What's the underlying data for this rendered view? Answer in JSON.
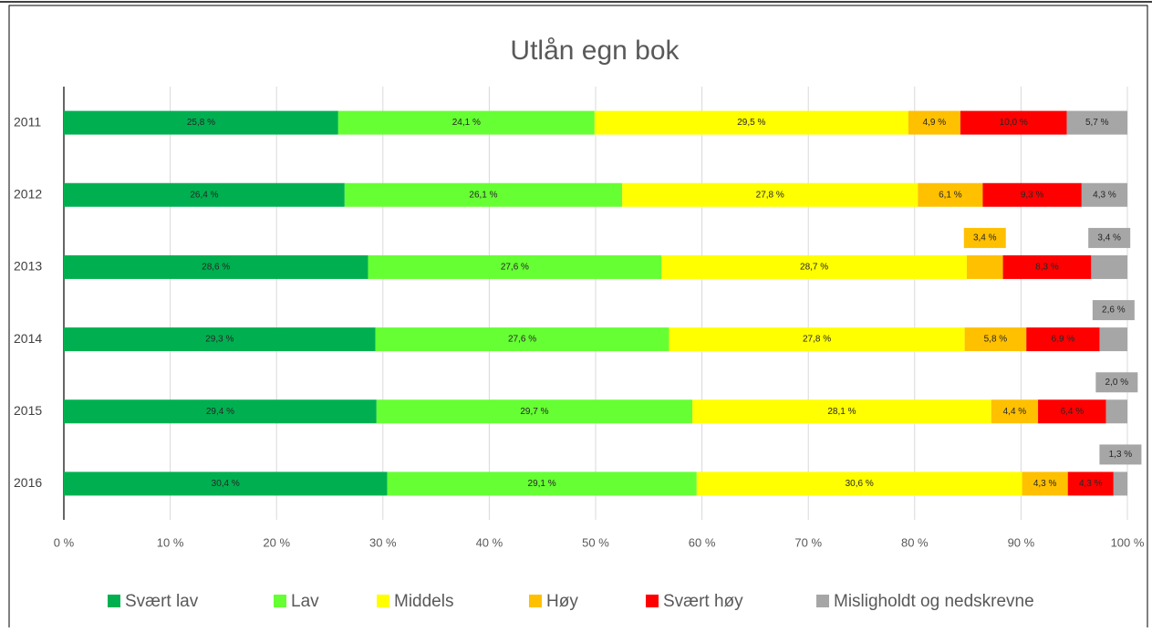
{
  "chart_data": {
    "type": "stacked_bar_horizontal",
    "title": "Utlån egn bok",
    "categories": [
      "2011",
      "2012",
      "2013",
      "2014",
      "2015",
      "2016"
    ],
    "series": [
      {
        "name": "Svært lav",
        "color": "#00b050",
        "values": [
          25.8,
          26.4,
          28.6,
          29.3,
          29.4,
          30.4
        ],
        "value_labels": [
          "25,8 %",
          "26,4 %",
          "28,6 %",
          "29,3 %",
          "29,4 %",
          "30,4 %"
        ]
      },
      {
        "name": "Lav",
        "color": "#66ff33",
        "values": [
          24.1,
          26.1,
          27.6,
          27.6,
          29.7,
          29.1
        ],
        "value_labels": [
          "24,1 %",
          "26,1 %",
          "27,6 %",
          "27,6 %",
          "29,7 %",
          "29,1 %"
        ]
      },
      {
        "name": "Middels",
        "color": "#ffff00",
        "values": [
          29.5,
          27.8,
          28.7,
          27.8,
          28.1,
          30.6
        ],
        "value_labels": [
          "29,5 %",
          "27,8 %",
          "28,7 %",
          "27,8 %",
          "28,1 %",
          "30,6 %"
        ]
      },
      {
        "name": "Høy",
        "color": "#ffc000",
        "values": [
          4.9,
          6.1,
          3.4,
          5.8,
          4.4,
          4.3
        ],
        "value_labels": [
          "4,9 %",
          "6,1 %",
          "3,4 %",
          "5,8 %",
          "4,4 %",
          "4,3 %"
        ]
      },
      {
        "name": "Svært høy",
        "color": "#ff0000",
        "values": [
          10.0,
          9.3,
          8.3,
          6.9,
          6.4,
          4.3
        ],
        "value_labels": [
          "10,0 %",
          "9,3 %",
          "8,3 %",
          "6,9 %",
          "6,4 %",
          "4,3 %"
        ]
      },
      {
        "name": "Misligholdt og nedskrevne",
        "color": "#a6a6a6",
        "values": [
          5.7,
          4.3,
          3.4,
          2.6,
          2.0,
          1.3
        ],
        "value_labels": [
          "5,7 %",
          "4,3 %",
          "3,4 %",
          "2,6 %",
          "2,0 %",
          "1,3 %"
        ]
      }
    ],
    "xlim": [
      0,
      100
    ],
    "xticks": [
      {
        "value": 0,
        "label": "0 %"
      },
      {
        "value": 10,
        "label": "10 %"
      },
      {
        "value": 20,
        "label": "20 %"
      },
      {
        "value": 30,
        "label": "30 %"
      },
      {
        "value": 40,
        "label": "40 %"
      },
      {
        "value": 50,
        "label": "50 %"
      },
      {
        "value": 60,
        "label": "60 %"
      },
      {
        "value": 70,
        "label": "70 %"
      },
      {
        "value": 80,
        "label": "80 %"
      },
      {
        "value": 90,
        "label": "90 %"
      },
      {
        "value": 100,
        "label": "100 %"
      }
    ],
    "grid": true,
    "legend": "bottom"
  }
}
